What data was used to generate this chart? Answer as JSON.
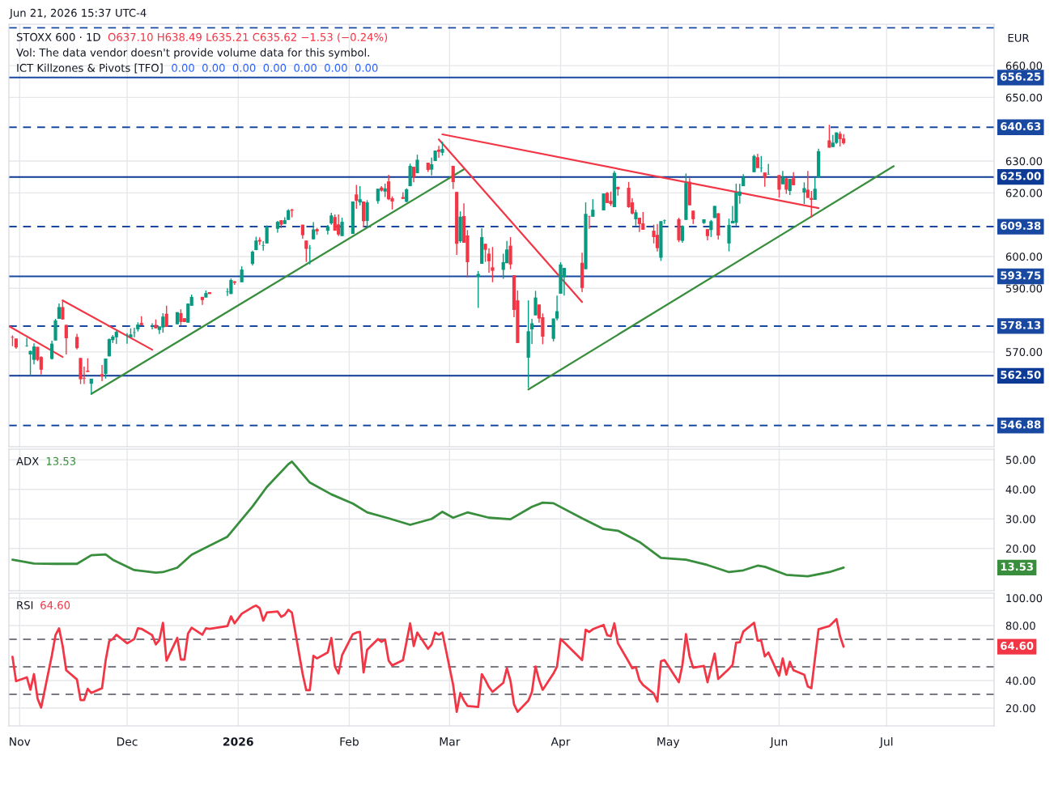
{
  "chart_data": [
    {
      "type": "candlestick",
      "title": "STOXX 600 · 1D",
      "subtitle": "O637.10 H638.49 L635.21 C635.62 −1.53 (−0.24%)",
      "annotations": [
        "Jun 21, 2026 15:37 UTC-4",
        "Vol: The data vendor doesn't provide volume data for this symbol.",
        "ICT Killzones & Pivots [TFO]",
        "0.00  0.00  0.00  0.00  0.00  0.00  0.00",
        "EUR"
      ],
      "x": [
        "2025-10-30",
        "2025-10-31",
        "2025-11-03",
        "2025-11-04",
        "2025-11-05",
        "2025-11-06",
        "2025-11-07",
        "2025-11-10",
        "2025-11-11",
        "2025-11-12",
        "2025-11-13",
        "2025-11-14",
        "2025-11-17",
        "2025-11-18",
        "2025-11-19",
        "2025-11-20",
        "2025-11-21",
        "2025-11-24",
        "2025-11-25",
        "2025-11-26",
        "2025-11-27",
        "2025-11-28",
        "2025-12-01",
        "2025-12-02",
        "2025-12-03",
        "2025-12-04",
        "2025-12-05",
        "2025-12-08",
        "2025-12-09",
        "2025-12-10",
        "2025-12-11",
        "2025-12-12",
        "2025-12-15",
        "2025-12-16",
        "2025-12-17",
        "2025-12-18",
        "2025-12-19",
        "2025-12-22",
        "2025-12-23",
        "2025-12-24",
        "2025-12-29",
        "2025-12-30",
        "2025-12-31",
        "2026-01-02",
        "2026-01-05",
        "2026-01-06",
        "2026-01-07",
        "2026-01-08",
        "2026-01-09",
        "2026-01-12",
        "2026-01-13",
        "2026-01-14",
        "2026-01-15",
        "2026-01-16",
        "2026-01-19",
        "2026-01-20",
        "2026-01-21",
        "2026-01-22",
        "2026-01-23",
        "2026-01-26",
        "2026-01-27",
        "2026-01-28",
        "2026-01-29",
        "2026-01-30",
        "2026-02-02",
        "2026-02-03",
        "2026-02-04",
        "2026-02-05",
        "2026-02-06",
        "2026-02-09",
        "2026-02-10",
        "2026-02-11",
        "2026-02-12",
        "2026-02-13",
        "2026-02-16",
        "2026-02-17",
        "2026-02-18",
        "2026-02-19",
        "2026-02-20",
        "2026-02-23",
        "2026-02-24",
        "2026-02-25",
        "2026-02-26",
        "2026-02-27",
        "2026-03-02",
        "2026-03-03",
        "2026-03-04",
        "2026-03-05",
        "2026-03-06",
        "2026-03-09",
        "2026-03-10",
        "2026-03-11",
        "2026-03-12",
        "2026-03-13",
        "2026-03-16",
        "2026-03-17",
        "2026-03-18",
        "2026-03-19",
        "2026-03-20",
        "2026-03-23",
        "2026-03-24",
        "2026-03-25",
        "2026-03-26",
        "2026-03-27",
        "2026-03-30",
        "2026-03-31",
        "2026-04-01",
        "2026-04-02",
        "2026-04-07",
        "2026-04-08",
        "2026-04-09",
        "2026-04-10",
        "2026-04-13",
        "2026-04-14",
        "2026-04-15",
        "2026-04-16",
        "2026-04-17",
        "2026-04-20",
        "2026-04-21",
        "2026-04-22",
        "2026-04-23",
        "2026-04-24",
        "2026-04-27",
        "2026-04-28",
        "2026-04-29",
        "2026-04-30",
        "2026-05-04",
        "2026-05-05",
        "2026-05-06",
        "2026-05-07",
        "2026-05-08",
        "2026-05-11",
        "2026-05-12",
        "2026-05-13",
        "2026-05-14",
        "2026-05-15",
        "2026-05-18",
        "2026-05-19",
        "2026-05-20",
        "2026-05-21",
        "2026-05-22",
        "2026-05-25",
        "2026-05-26",
        "2026-05-27",
        "2026-05-28",
        "2026-05-29",
        "2026-06-01",
        "2026-06-02",
        "2026-06-03",
        "2026-06-04",
        "2026-06-05",
        "2026-06-08",
        "2026-06-09",
        "2026-06-10",
        "2026-06-11",
        "2026-06-12",
        "2026-06-15",
        "2026-06-16",
        "2026-06-17",
        "2026-06-18",
        "2026-06-19"
      ],
      "ohlc": [
        [
          574.7,
          575.2,
          571.8,
          574.5
        ],
        [
          574.2,
          574.2,
          571.0,
          571.4
        ],
        [
          571.8,
          574.4,
          571.6,
          571.9
        ],
        [
          569.2,
          570.4,
          562.5,
          570.3
        ],
        [
          567.5,
          572.7,
          566.1,
          571.7
        ],
        [
          571.6,
          571.6,
          567.1,
          567.5
        ],
        [
          568.4,
          568.6,
          562.9,
          564.4
        ],
        [
          567.8,
          573.5,
          567.6,
          572.6
        ],
        [
          573.6,
          580.4,
          573.6,
          579.9
        ],
        [
          580.4,
          585.2,
          580.4,
          584.1
        ],
        [
          584.1,
          586.3,
          580.2,
          580.2
        ],
        [
          578.5,
          578.5,
          569.2,
          574.3
        ],
        [
          574.7,
          575.7,
          570.8,
          571.2
        ],
        [
          568.1,
          568.1,
          559.9,
          561.4
        ],
        [
          561.8,
          565.4,
          559.9,
          561.6
        ],
        [
          564.1,
          568.0,
          563.7,
          563.7
        ],
        [
          560.0,
          561.6,
          556.8,
          561.6
        ],
        [
          563.0,
          565.9,
          560.8,
          562.3
        ],
        [
          563.1,
          567.9,
          561.6,
          567.9
        ],
        [
          568.6,
          574.2,
          568.6,
          574.0
        ],
        [
          573.7,
          575.3,
          572.8,
          574.8
        ],
        [
          574.6,
          576.7,
          572.5,
          576.3
        ],
        [
          575.2,
          575.9,
          572.6,
          575.3
        ],
        [
          574.6,
          577.4,
          574.6,
          575.5
        ],
        [
          576.0,
          577.6,
          574.6,
          576.1
        ],
        [
          577.1,
          579.3,
          576.4,
          578.6
        ],
        [
          579.1,
          581.2,
          578.4,
          578.4
        ],
        [
          578.0,
          579.0,
          577.1,
          578.1
        ],
        [
          578.5,
          580.2,
          577.4,
          577.4
        ],
        [
          576.9,
          578.0,
          575.6,
          578.0
        ],
        [
          577.7,
          582.2,
          576.1,
          581.1
        ],
        [
          582.0,
          584.5,
          577.9,
          577.9
        ],
        [
          578.7,
          582.5,
          578.7,
          582.5
        ],
        [
          582.2,
          583.4,
          578.4,
          579.4
        ],
        [
          580.6,
          580.6,
          579.4,
          579.4
        ],
        [
          579.2,
          585.2,
          579.2,
          585.2
        ],
        [
          584.5,
          588.0,
          584.5,
          587.3
        ],
        [
          587.3,
          587.3,
          584.8,
          586.3
        ],
        [
          587.1,
          589.3,
          587.1,
          588.5
        ],
        [
          588.8,
          588.8,
          588.2,
          588.2
        ],
        [
          588.8,
          590.0,
          587.6,
          588.9
        ],
        [
          588.2,
          593.1,
          588.2,
          592.6
        ],
        [
          592.2,
          592.2,
          591.1,
          591.7
        ],
        [
          591.9,
          596.9,
          591.9,
          595.9
        ],
        [
          597.7,
          601.8,
          597.2,
          601.5
        ],
        [
          602.0,
          606.2,
          602.0,
          605.0
        ],
        [
          605.2,
          606.0,
          603.6,
          604.7
        ],
        [
          603.4,
          604.8,
          601.8,
          603.5
        ],
        [
          604.1,
          609.8,
          604.1,
          609.4
        ],
        [
          608.7,
          611.2,
          607.5,
          610.9
        ],
        [
          611.4,
          611.4,
          608.9,
          610.0
        ],
        [
          610.2,
          612.3,
          610.2,
          611.4
        ],
        [
          611.5,
          614.9,
          611.5,
          614.5
        ],
        [
          614.7,
          615.0,
          612.3,
          614.4
        ],
        [
          610.0,
          610.0,
          605.6,
          606.7
        ],
        [
          605.0,
          605.0,
          598.3,
          602.4
        ],
        [
          602.5,
          603.6,
          597.5,
          602.6
        ],
        [
          605.4,
          610.8,
          605.4,
          608.5
        ],
        [
          608.6,
          609.0,
          606.8,
          607.9
        ],
        [
          608.1,
          609.9,
          606.9,
          609.4
        ],
        [
          610.4,
          613.7,
          610.0,
          612.9
        ],
        [
          612.4,
          613.2,
          608.1,
          608.1
        ],
        [
          610.1,
          613.2,
          606.4,
          606.9
        ],
        [
          606.4,
          612.2,
          606.4,
          610.9
        ],
        [
          607.1,
          617.3,
          607.1,
          617.3
        ],
        [
          619.5,
          622.5,
          615.0,
          617.5
        ],
        [
          617.0,
          622.1,
          616.1,
          618.0
        ],
        [
          617.3,
          617.3,
          609.2,
          611.1
        ],
        [
          611.2,
          617.7,
          609.2,
          617.0
        ],
        [
          617.4,
          621.3,
          616.6,
          621.3
        ],
        [
          621.7,
          622.1,
          620.4,
          620.7
        ],
        [
          620.4,
          622.9,
          618.7,
          621.4
        ],
        [
          623.6,
          625.7,
          617.7,
          618.0
        ],
        [
          618.3,
          618.9,
          614.8,
          617.3
        ],
        [
          618.7,
          620.2,
          618.1,
          618.1
        ],
        [
          617.2,
          621.4,
          617.0,
          621.1
        ],
        [
          622.1,
          629.2,
          622.1,
          628.5
        ],
        [
          628.2,
          628.2,
          623.3,
          625.0
        ],
        [
          626.2,
          632.0,
          626.2,
          630.4
        ],
        [
          629.5,
          629.5,
          626.6,
          627.2
        ],
        [
          627.3,
          631.1,
          625.5,
          629.0
        ],
        [
          630.0,
          633.3,
          630.0,
          633.3
        ],
        [
          633.6,
          634.8,
          631.0,
          632.9
        ],
        [
          632.6,
          636.1,
          631.7,
          633.8
        ],
        [
          628.5,
          628.5,
          621.2,
          623.4
        ],
        [
          620.3,
          620.3,
          600.5,
          604.0
        ],
        [
          604.8,
          614.2,
          604.3,
          612.5
        ],
        [
          612.7,
          616.7,
          604.3,
          604.3
        ],
        [
          606.6,
          608.3,
          593.4,
          598.2
        ],
        [
          593.6,
          595.4,
          583.8,
          594.5
        ],
        [
          597.7,
          608.9,
          597.7,
          606.1
        ],
        [
          604.0,
          604.0,
          598.3,
          602.1
        ],
        [
          600.9,
          602.6,
          594.9,
          598.5
        ],
        [
          596.6,
          603.0,
          591.9,
          595.5
        ],
        [
          595.8,
          600.9,
          593.0,
          598.2
        ],
        [
          597.9,
          604.9,
          597.9,
          602.2
        ],
        [
          603.4,
          606.1,
          596.0,
          597.5
        ],
        [
          594.1,
          594.1,
          580.9,
          583.2
        ],
        [
          586.2,
          589.3,
          572.8,
          572.8
        ],
        [
          568.2,
          586.2,
          558.7,
          576.5
        ],
        [
          577.1,
          580.4,
          572.5,
          579.0
        ],
        [
          581.5,
          589.2,
          581.5,
          587.1
        ],
        [
          584.9,
          584.9,
          579.2,
          580.5
        ],
        [
          580.9,
          582.1,
          572.4,
          574.8
        ],
        [
          574.1,
          580.5,
          573.3,
          580.5
        ],
        [
          580.5,
          587.7,
          579.9,
          582.8
        ],
        [
          588.3,
          598.2,
          588.3,
          597.5
        ],
        [
          593.5,
          596.4,
          587.7,
          596.4
        ],
        [
          598.0,
          601.2,
          588.8,
          590.1
        ],
        [
          596.0,
          617.0,
          596.0,
          613.4
        ],
        [
          612.7,
          612.7,
          608.7,
          612.6
        ],
        [
          612.5,
          618.0,
          612.5,
          614.7
        ],
        [
          614.5,
          619.8,
          614.5,
          619.8
        ],
        [
          620.0,
          620.3,
          616.8,
          616.8
        ],
        [
          617.5,
          620.4,
          615.9,
          616.5
        ],
        [
          615.5,
          626.9,
          615.5,
          626.3
        ],
        [
          621.9,
          621.9,
          619.1,
          621.1
        ],
        [
          621.6,
          623.4,
          615.3,
          615.5
        ],
        [
          617.0,
          618.3,
          613.2,
          613.5
        ],
        [
          611.7,
          614.7,
          609.7,
          613.9
        ],
        [
          612.2,
          612.2,
          607.7,
          610.2
        ],
        [
          610.4,
          614.0,
          608.4,
          608.4
        ],
        [
          608.1,
          610.0,
          604.1,
          606.1
        ],
        [
          606.8,
          610.2,
          601.6,
          602.6
        ],
        [
          599.6,
          611.1,
          598.6,
          611.1
        ],
        [
          611.2,
          611.6,
          610.2,
          611.3
        ],
        [
          611.7,
          612.2,
          604.5,
          605.1
        ],
        [
          604.9,
          609.8,
          604.3,
          609.6
        ],
        [
          611.5,
          626.1,
          611.5,
          623.1
        ],
        [
          623.5,
          624.6,
          616.1,
          616.1
        ],
        [
          614.4,
          614.4,
          610.2,
          611.7
        ],
        [
          610.5,
          611.7,
          610.2,
          611.7
        ],
        [
          608.6,
          608.6,
          605.1,
          606.4
        ],
        [
          608.3,
          611.5,
          606.1,
          611.1
        ],
        [
          612.1,
          615.9,
          612.1,
          615.9
        ],
        [
          613.6,
          613.6,
          605.3,
          606.6
        ],
        [
          604.1,
          611.9,
          601.6,
          609.9
        ],
        [
          610.4,
          615.9,
          610.4,
          611.2
        ],
        [
          610.6,
          622.9,
          609.5,
          620.1
        ],
        [
          619.1,
          622.9,
          616.6,
          620.4
        ],
        [
          622.1,
          625.9,
          622.1,
          624.9
        ],
        [
          626.5,
          632.0,
          626.5,
          631.6
        ],
        [
          631.2,
          632.3,
          627.8,
          627.8
        ],
        [
          627.7,
          631.6,
          626.5,
          627.8
        ],
        [
          626.4,
          626.4,
          621.9,
          624.8
        ],
        [
          625.8,
          629.1,
          625.7,
          625.9
        ],
        [
          625.6,
          625.6,
          618.5,
          621.0
        ],
        [
          622.7,
          626.9,
          622.7,
          625.0
        ],
        [
          624.6,
          624.6,
          619.7,
          621.0
        ],
        [
          620.6,
          624.4,
          619.3,
          624.4
        ],
        [
          624.6,
          626.5,
          622.4,
          622.4
        ],
        [
          620.1,
          623.3,
          616.5,
          621.5
        ],
        [
          621.0,
          626.9,
          618.4,
          618.4
        ],
        [
          618.4,
          620.6,
          612.2,
          617.8
        ],
        [
          617.8,
          624.8,
          617.8,
          621.3
        ],
        [
          624.8,
          633.9,
          624.8,
          633.1
        ],
        [
          636.5,
          641.4,
          634.2,
          634.2
        ],
        [
          634.4,
          638.2,
          634.4,
          635.8
        ],
        [
          635.7,
          639.0,
          635.4,
          639.0
        ],
        [
          638.6,
          639.3,
          634.6,
          636.9
        ],
        [
          637.1,
          638.49,
          635.21,
          635.62
        ]
      ],
      "colors": [
        "#f23645",
        "#f23645",
        "#089981",
        "#089981",
        "#089981",
        "#f23645",
        "#f23645",
        "#089981",
        "#089981",
        "#089981",
        "#f23645",
        "#f23645",
        "#f23645",
        "#f23645",
        "#f23645",
        "#f23645",
        "#089981",
        "#f23645",
        "#089981",
        "#089981",
        "#089981",
        "#089981",
        "#089981",
        "#089981",
        "#089981",
        "#089981",
        "#f23645",
        "#089981",
        "#f23645",
        "#089981",
        "#089981",
        "#f23645",
        "#089981",
        "#f23645",
        "#f23645",
        "#089981",
        "#089981",
        "#f23645",
        "#089981",
        "#f23645",
        "#089981",
        "#089981",
        "#f23645",
        "#089981",
        "#089981",
        "#089981",
        "#f23645",
        "#089981",
        "#089981",
        "#089981",
        "#f23645",
        "#089981",
        "#089981",
        "#f23645",
        "#f23645",
        "#f23645",
        "#089981",
        "#089981",
        "#f23645",
        "#089981",
        "#089981",
        "#f23645",
        "#f23645",
        "#089981",
        "#089981",
        "#f23645",
        "#089981",
        "#f23645",
        "#089981",
        "#089981",
        "#f23645",
        "#089981",
        "#f23645",
        "#f23645",
        "#f23645",
        "#089981",
        "#089981",
        "#f23645",
        "#089981",
        "#f23645",
        "#089981",
        "#089981",
        "#f23645",
        "#089981",
        "#f23645",
        "#f23645",
        "#089981",
        "#f23645",
        "#f23645",
        "#089981",
        "#089981",
        "#f23645",
        "#f23645",
        "#f23645",
        "#089981",
        "#089981",
        "#f23645",
        "#f23645",
        "#f23645",
        "#089981",
        "#089981",
        "#089981",
        "#f23645",
        "#f23645",
        "#089981",
        "#089981",
        "#089981",
        "#089981",
        "#f23645",
        "#089981",
        "#f23645",
        "#089981",
        "#089981",
        "#f23645",
        "#f23645",
        "#089981",
        "#f23645",
        "#f23645",
        "#f23645",
        "#089981",
        "#f23645",
        "#f23645",
        "#f23645",
        "#f23645",
        "#089981",
        "#089981",
        "#f23645",
        "#089981",
        "#089981",
        "#f23645",
        "#f23645",
        "#089981",
        "#f23645",
        "#089981",
        "#089981",
        "#f23645",
        "#089981",
        "#089981",
        "#089981",
        "#089981",
        "#089981",
        "#089981",
        "#f23645",
        "#089981",
        "#f23645",
        "#089981",
        "#f23645",
        "#089981",
        "#f23645",
        "#089981",
        "#f23645",
        "#089981",
        "#f23645",
        "#f23645",
        "#089981",
        "#089981",
        "#f23645",
        "#089981",
        "#089981",
        "#f23645",
        "#f23645"
      ],
      "series": [
        {
          "type": "line",
          "color": "#388e3c",
          "x": [
            "2025-11-21",
            "2026-03-05"
          ],
          "values": [
            556.8,
            627.4
          ]
        },
        {
          "type": "line",
          "color": "#388e3c",
          "x": [
            "2026-03-23",
            "2026-07-03"
          ],
          "values": [
            558.2,
            628.4
          ]
        },
        {
          "type": "line",
          "color": "#f23645",
          "x": [
            "2025-10-29",
            "2025-11-13"
          ],
          "values": [
            578.1,
            568.4
          ]
        },
        {
          "type": "line",
          "color": "#f23645",
          "x": [
            "2025-11-13",
            "2025-12-08"
          ],
          "values": [
            586.2,
            570.7
          ]
        },
        {
          "type": "line",
          "color": "#f23645",
          "x": [
            "2026-02-26",
            "2026-04-07"
          ],
          "values": [
            636.8,
            585.7
          ]
        },
        {
          "type": "line",
          "color": "#f23645",
          "x": [
            "2026-02-27",
            "2026-06-12"
          ],
          "values": [
            638.4,
            615.2
          ]
        }
      ],
      "ref_lines": [
        {
          "axis": "y",
          "value": 671.88,
          "label": null,
          "color": "#1848a0",
          "line_style": "dashed"
        },
        {
          "axis": "y",
          "value": 656.25,
          "label": "656.25",
          "color": "#1848a0",
          "line_style": "solid"
        },
        {
          "axis": "y",
          "value": 640.63,
          "label": "640.63",
          "color": "#1848a0",
          "line_style": "dashed"
        },
        {
          "axis": "y",
          "value": 625.0,
          "label": "625.00",
          "color": "#0c3a94",
          "line_style": "solid"
        },
        {
          "axis": "y",
          "value": 609.38,
          "label": "609.38",
          "color": "#1848a0",
          "line_style": "dashed"
        },
        {
          "axis": "y",
          "value": 593.75,
          "label": "593.75",
          "color": "#1848a0",
          "line_style": "solid"
        },
        {
          "axis": "y",
          "value": 578.13,
          "label": "578.13",
          "color": "#1848a0",
          "line_style": "dashed"
        },
        {
          "axis": "y",
          "value": 562.5,
          "label": "562.50",
          "color": "#0c3a94",
          "line_style": "solid"
        },
        {
          "axis": "y",
          "value": 546.88,
          "label": "546.88",
          "color": "#1848a0",
          "line_style": "dashed"
        }
      ],
      "xlim": [
        "2025-10-29",
        "2026-07-31"
      ],
      "xticks": [
        {
          "value": "2025-11-01",
          "label": null
        },
        {
          "value": "2025-12-01",
          "label": null
        },
        {
          "value": "2026-01-01",
          "label": null
        },
        {
          "value": "2026-02-01",
          "label": null
        },
        {
          "value": "2026-03-01",
          "label": null
        },
        {
          "value": "2026-04-01",
          "label": null
        },
        {
          "value": "2026-05-01",
          "label": null
        },
        {
          "value": "2026-06-01",
          "label": null
        },
        {
          "value": "2026-07-01",
          "label": null
        }
      ],
      "ylim": [
        540.2,
        673.0
      ],
      "yticks": [
        {
          "value": 570,
          "label": "570.00"
        },
        {
          "value": 590,
          "label": "590.00"
        },
        {
          "value": 600,
          "label": "600.00"
        },
        {
          "value": 620,
          "label": "620.00"
        },
        {
          "value": 630,
          "label": "630.00"
        },
        {
          "value": 650,
          "label": "650.00"
        },
        {
          "value": 660,
          "label": "660.00"
        }
      ],
      "grid": true,
      "tick_labels": "y"
    },
    {
      "type": "line",
      "title": "ADX",
      "annotations": [
        "13.53",
        "13.53"
      ],
      "x": [
        "2025-10-30",
        "2025-11-05",
        "2025-11-11",
        "2025-11-17",
        "2025-11-21",
        "2025-11-25",
        "2025-11-27",
        "2025-12-03",
        "2025-12-09",
        "2025-12-11",
        "2025-12-15",
        "2025-12-19",
        "2025-12-29",
        "2026-01-05",
        "2026-01-09",
        "2026-01-15",
        "2026-01-16",
        "2026-01-21",
        "2026-01-27",
        "2026-02-02",
        "2026-02-06",
        "2026-02-12",
        "2026-02-18",
        "2026-02-24",
        "2026-02-27",
        "2026-03-02",
        "2026-03-06",
        "2026-03-12",
        "2026-03-18",
        "2026-03-24",
        "2026-03-27",
        "2026-03-30",
        "2026-04-07",
        "2026-04-13",
        "2026-04-17",
        "2026-04-23",
        "2026-04-29",
        "2026-05-06",
        "2026-05-12",
        "2026-05-18",
        "2026-05-22",
        "2026-05-26",
        "2026-05-28",
        "2026-06-03",
        "2026-06-09",
        "2026-06-15",
        "2026-06-19"
      ],
      "series": [
        {
          "color": "#388e3c",
          "values": [
            16.2,
            14.9,
            14.8,
            14.8,
            17.7,
            18.0,
            16.2,
            12.7,
            11.8,
            12.0,
            13.5,
            17.9,
            24.0,
            34.2,
            40.8,
            48.5,
            49.4,
            42.3,
            38.3,
            35.2,
            32.2,
            30.2,
            28.0,
            30.0,
            32.4,
            30.4,
            32.2,
            30.4,
            29.9,
            34.1,
            35.5,
            35.3,
            30.2,
            26.6,
            26.0,
            22.2,
            16.8,
            16.2,
            14.4,
            12.0,
            12.6,
            14.2,
            13.8,
            11.1,
            10.6,
            12.0,
            13.53
          ]
        }
      ],
      "xlim": [
        "2025-10-29",
        "2026-07-31"
      ],
      "xticks": [
        {
          "value": "2025-11-01",
          "label": null
        },
        {
          "value": "2025-12-01",
          "label": null
        },
        {
          "value": "2026-01-01",
          "label": null
        },
        {
          "value": "2026-02-01",
          "label": null
        },
        {
          "value": "2026-03-01",
          "label": null
        },
        {
          "value": "2026-04-01",
          "label": null
        },
        {
          "value": "2026-05-01",
          "label": null
        },
        {
          "value": "2026-06-01",
          "label": null
        },
        {
          "value": "2026-07-01",
          "label": null
        }
      ],
      "ylim": [
        5.7,
        53.6
      ],
      "yticks": [
        {
          "value": 20,
          "label": "20.00"
        },
        {
          "value": 30,
          "label": "30.00"
        },
        {
          "value": 40,
          "label": "40.00"
        },
        {
          "value": 50,
          "label": "50.00"
        }
      ],
      "grid": true,
      "tick_labels": "y"
    },
    {
      "type": "line",
      "title": "RSI",
      "annotations": [
        "64.60",
        "64.60"
      ],
      "x": [
        "2025-10-30",
        "2025-10-31",
        "2025-11-03",
        "2025-11-04",
        "2025-11-05",
        "2025-11-06",
        "2025-11-07",
        "2025-11-10",
        "2025-11-11",
        "2025-11-12",
        "2025-11-13",
        "2025-11-14",
        "2025-11-17",
        "2025-11-18",
        "2025-11-19",
        "2025-11-20",
        "2025-11-21",
        "2025-11-24",
        "2025-11-25",
        "2025-11-26",
        "2025-11-27",
        "2025-11-28",
        "2025-12-01",
        "2025-12-02",
        "2025-12-03",
        "2025-12-04",
        "2025-12-05",
        "2025-12-08",
        "2025-12-09",
        "2025-12-10",
        "2025-12-11",
        "2025-12-12",
        "2025-12-15",
        "2025-12-16",
        "2025-12-17",
        "2025-12-18",
        "2025-12-19",
        "2025-12-22",
        "2025-12-23",
        "2025-12-24",
        "2025-12-29",
        "2025-12-30",
        "2025-12-31",
        "2026-01-02",
        "2026-01-05",
        "2026-01-06",
        "2026-01-07",
        "2026-01-08",
        "2026-01-09",
        "2026-01-12",
        "2026-01-13",
        "2026-01-14",
        "2026-01-15",
        "2026-01-16",
        "2026-01-19",
        "2026-01-20",
        "2026-01-21",
        "2026-01-22",
        "2026-01-23",
        "2026-01-26",
        "2026-01-27",
        "2026-01-28",
        "2026-01-29",
        "2026-01-30",
        "2026-02-02",
        "2026-02-03",
        "2026-02-04",
        "2026-02-05",
        "2026-02-06",
        "2026-02-09",
        "2026-02-10",
        "2026-02-11",
        "2026-02-12",
        "2026-02-13",
        "2026-02-16",
        "2026-02-17",
        "2026-02-18",
        "2026-02-19",
        "2026-02-20",
        "2026-02-23",
        "2026-02-24",
        "2026-02-25",
        "2026-02-26",
        "2026-02-27",
        "2026-03-02",
        "2026-03-03",
        "2026-03-04",
        "2026-03-05",
        "2026-03-06",
        "2026-03-09",
        "2026-03-10",
        "2026-03-11",
        "2026-03-12",
        "2026-03-13",
        "2026-03-16",
        "2026-03-17",
        "2026-03-18",
        "2026-03-19",
        "2026-03-20",
        "2026-03-23",
        "2026-03-24",
        "2026-03-25",
        "2026-03-26",
        "2026-03-27",
        "2026-03-30",
        "2026-03-31",
        "2026-04-01",
        "2026-04-02",
        "2026-04-07",
        "2026-04-08",
        "2026-04-09",
        "2026-04-10",
        "2026-04-13",
        "2026-04-14",
        "2026-04-15",
        "2026-04-16",
        "2026-04-17",
        "2026-04-20",
        "2026-04-21",
        "2026-04-22",
        "2026-04-23",
        "2026-04-24",
        "2026-04-27",
        "2026-04-28",
        "2026-04-29",
        "2026-04-30",
        "2026-05-04",
        "2026-05-05",
        "2026-05-06",
        "2026-05-07",
        "2026-05-08",
        "2026-05-11",
        "2026-05-12",
        "2026-05-13",
        "2026-05-14",
        "2026-05-15",
        "2026-05-18",
        "2026-05-19",
        "2026-05-20",
        "2026-05-21",
        "2026-05-22",
        "2026-05-25",
        "2026-05-26",
        "2026-05-27",
        "2026-05-28",
        "2026-05-29",
        "2026-06-01",
        "2026-06-02",
        "2026-06-03",
        "2026-06-04",
        "2026-06-05",
        "2026-06-08",
        "2026-06-09",
        "2026-06-10",
        "2026-06-11",
        "2026-06-12",
        "2026-06-15",
        "2026-06-16",
        "2026-06-17",
        "2026-06-18",
        "2026-06-19"
      ],
      "series": [
        {
          "color": "#f23645",
          "values": [
            57.3,
            39.6,
            42.4,
            33.3,
            44.7,
            27.0,
            20.4,
            58.4,
            73.0,
            78.0,
            65.1,
            47.5,
            40.8,
            25.9,
            25.9,
            34.1,
            31.0,
            34.5,
            54.5,
            68.6,
            70.2,
            73.3,
            67.1,
            68.6,
            70.2,
            78.0,
            77.6,
            73.0,
            66.3,
            69.4,
            82.0,
            54.5,
            71.0,
            55.3,
            55.3,
            74.1,
            78.4,
            73.3,
            78.0,
            77.6,
            79.6,
            86.7,
            81.6,
            88.6,
            93.3,
            94.5,
            92.5,
            83.5,
            89.4,
            90.2,
            86.3,
            87.8,
            91.4,
            89.4,
            44.7,
            33.0,
            33.0,
            58.0,
            56.1,
            60.4,
            71.0,
            50.2,
            45.1,
            58.4,
            73.7,
            74.9,
            75.3,
            45.9,
            62.4,
            70.2,
            68.2,
            69.8,
            54.5,
            51.0,
            54.9,
            68.2,
            81.6,
            65.1,
            74.9,
            63.1,
            66.3,
            74.9,
            73.3,
            74.9,
            36.9,
            17.3,
            31.0,
            25.5,
            21.6,
            20.8,
            44.7,
            40.4,
            35.3,
            31.8,
            38.4,
            49.0,
            40.0,
            22.7,
            17.3,
            25.5,
            31.8,
            50.2,
            40.4,
            33.3,
            45.1,
            50.2,
            70.2,
            67.8,
            54.9,
            76.9,
            75.3,
            77.3,
            80.4,
            73.0,
            72.2,
            81.6,
            67.1,
            53.7,
            49.0,
            49.8,
            40.4,
            36.9,
            30.6,
            24.7,
            54.1,
            54.9,
            38.8,
            51.4,
            73.7,
            57.6,
            49.4,
            50.6,
            38.8,
            49.4,
            59.6,
            41.2,
            48.6,
            51.4,
            67.5,
            67.8,
            75.7,
            82.0,
            69.0,
            69.0,
            57.6,
            60.4,
            43.5,
            56.1,
            44.3,
            53.7,
            47.5,
            44.3,
            35.7,
            34.5,
            56.1,
            77.3,
            79.6,
            82.0,
            84.7,
            72.2,
            64.6
          ]
        }
      ],
      "ref_lines": [
        {
          "axis": "y",
          "value": 70,
          "label": null,
          "color": "#787b86",
          "line_style": "dashed"
        },
        {
          "axis": "y",
          "value": 50,
          "label": null,
          "color": "#787b86",
          "line_style": "dashed"
        },
        {
          "axis": "y",
          "value": 30,
          "label": null,
          "color": "#787b86",
          "line_style": "dashed"
        }
      ],
      "xlim": [
        "2025-10-29",
        "2026-07-31"
      ],
      "xticks": [
        {
          "value": "2025-11-01",
          "label": "Nov"
        },
        {
          "value": "2025-12-01",
          "label": "Dec"
        },
        {
          "value": "2026-01-01",
          "label": "2026"
        },
        {
          "value": "2026-02-01",
          "label": "Feb"
        },
        {
          "value": "2026-03-01",
          "label": "Mar"
        },
        {
          "value": "2026-04-01",
          "label": "Apr"
        },
        {
          "value": "2026-05-01",
          "label": "May"
        },
        {
          "value": "2026-06-01",
          "label": "Jun"
        },
        {
          "value": "2026-07-01",
          "label": "Jul"
        }
      ],
      "ylim": [
        7.1,
        103.5
      ],
      "yticks": [
        {
          "value": 20,
          "label": "20.00"
        },
        {
          "value": 40,
          "label": "40.00"
        },
        {
          "value": 80,
          "label": "80.00"
        },
        {
          "value": 100,
          "label": "100.00"
        }
      ],
      "grid": true
    }
  ]
}
